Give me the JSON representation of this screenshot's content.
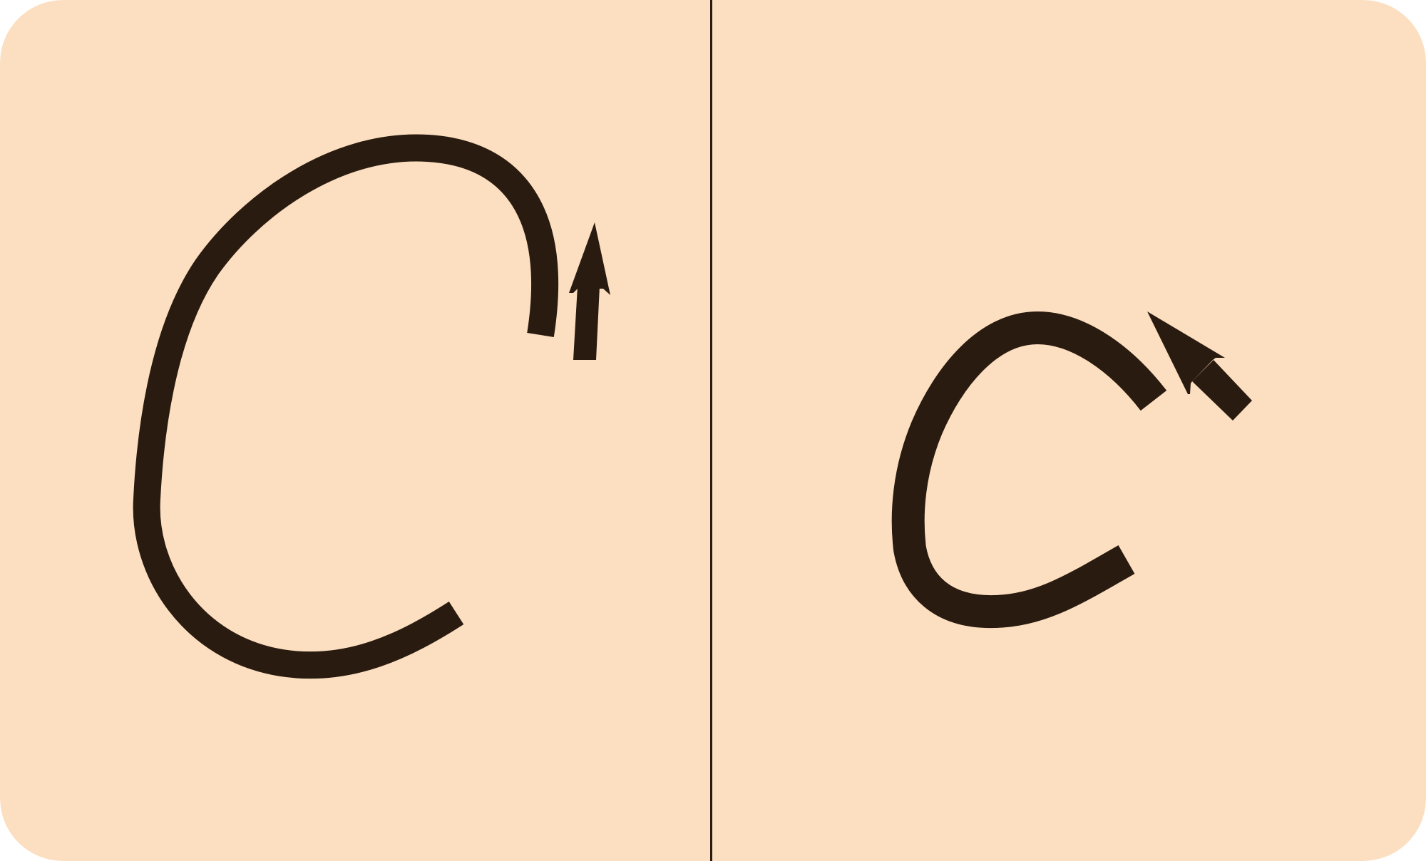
{
  "card": {
    "background_color": "#fcdfc1",
    "ink_color": "#2a1b10",
    "divider_color": "#2a1b10"
  },
  "panels": [
    {
      "figure": "uppercase-c-stroke",
      "direction_arrow": "up-arrow-icon"
    },
    {
      "figure": "lowercase-c-stroke",
      "direction_arrow": "up-left-arrow-icon"
    }
  ]
}
